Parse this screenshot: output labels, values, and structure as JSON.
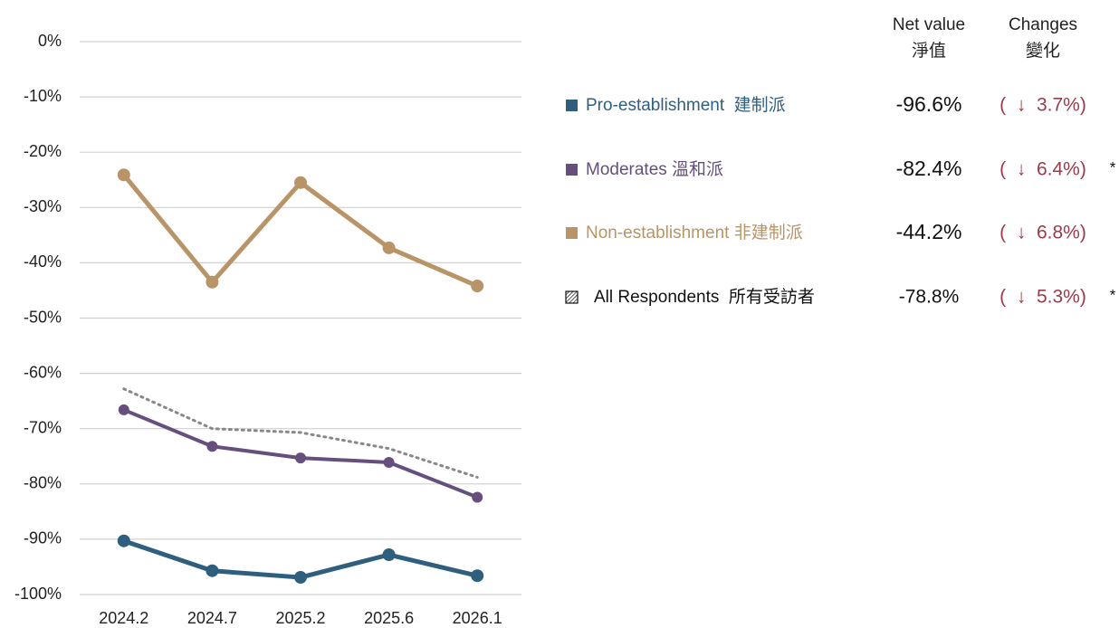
{
  "chart_data": {
    "type": "line",
    "categories": [
      "2024.2",
      "2024.7",
      "2025.2",
      "2025.6",
      "2026.1"
    ],
    "ylim": [
      -100,
      0
    ],
    "yticks": [
      {
        "value": 0,
        "label": "0%"
      },
      {
        "value": -10,
        "label": "-10%"
      },
      {
        "value": -20,
        "label": "-20%"
      },
      {
        "value": -30,
        "label": "-30%"
      },
      {
        "value": -40,
        "label": "-40%"
      },
      {
        "value": -50,
        "label": "-50%"
      },
      {
        "value": -60,
        "label": "-60%"
      },
      {
        "value": -70,
        "label": "-70%"
      },
      {
        "value": -80,
        "label": "-80%"
      },
      {
        "value": -90,
        "label": "-90%"
      },
      {
        "value": -100,
        "label": "-100%"
      }
    ],
    "grid": true,
    "legend_headers": [
      [
        "Net value",
        "淨值"
      ],
      [
        "Changes",
        "變化"
      ]
    ],
    "series": [
      {
        "name": "Pro-establishment  建制派",
        "color": "#2e5f7f",
        "line_style": "solid",
        "markers": true,
        "values": [
          -90.3,
          -95.7,
          -96.9,
          -92.8,
          -96.6
        ],
        "net_value_label": "-96.6%",
        "change_label": "(  ↓  3.7%)"
      },
      {
        "name": "Moderates 溫和派",
        "color": "#654f7d",
        "line_style": "solid",
        "markers": true,
        "values": [
          -66.6,
          -73.2,
          -75.3,
          -76.1,
          -82.4
        ],
        "net_value_label": "-82.4%",
        "change_label": "(  ↓  6.4%)",
        "note": "*"
      },
      {
        "name": "Non-establishment 非建制派",
        "color": "#b89467",
        "line_style": "solid",
        "markers": true,
        "values": [
          -24.1,
          -43.5,
          -25.5,
          -37.3,
          -44.2
        ],
        "net_value_label": "-44.2%",
        "change_label": "(  ↓  6.8%)"
      },
      {
        "name": "All Respondents  所有受訪者",
        "color": "#888888",
        "line_style": "dotted",
        "markers": false,
        "values": [
          -62.8,
          -70.0,
          -70.7,
          -73.6,
          -78.8
        ],
        "net_value_label": "-78.8%",
        "change_label": "(  ↓  5.3%)",
        "note": "*"
      }
    ]
  }
}
